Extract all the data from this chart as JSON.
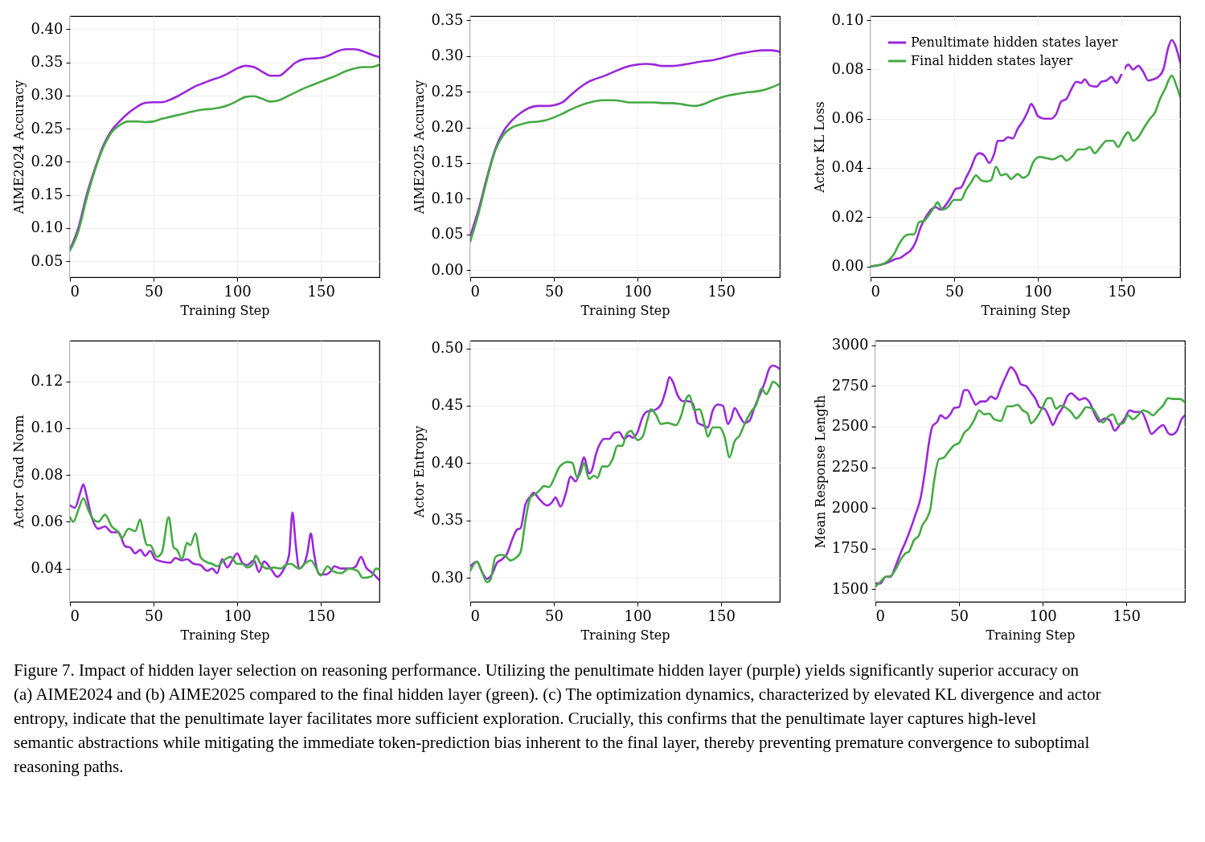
{
  "chart_data": [
    {
      "type": "line",
      "xlabel": "Training Step",
      "ylabel": "AIME2024 Accuracy",
      "xlim": [
        0,
        185
      ],
      "ylim": [
        0.026,
        0.42
      ],
      "xticks": [
        0,
        50,
        100,
        150
      ],
      "yticks": [
        0.05,
        {
          "value": 0.1,
          "label": "0.10"
        },
        0.15,
        {
          "value": 0.2,
          "label": "0.20"
        },
        0.25,
        {
          "value": 0.3,
          "label": "0.30"
        },
        0.35,
        {
          "value": 0.4,
          "label": "0.40"
        }
      ],
      "grid": true,
      "legend": false,
      "series": [
        {
          "color": "#9b27db",
          "x": [
            0,
            5,
            10,
            15,
            20,
            25,
            30,
            35,
            40,
            45,
            50,
            55,
            60,
            65,
            70,
            75,
            80,
            85,
            90,
            95,
            100,
            105,
            110,
            115,
            120,
            125,
            130,
            135,
            140,
            145,
            150,
            155,
            160,
            165,
            170,
            175,
            180,
            185
          ],
          "values": [
            0.068,
            0.1,
            0.15,
            0.19,
            0.225,
            0.248,
            0.262,
            0.274,
            0.283,
            0.289,
            0.29,
            0.29,
            0.294,
            0.3,
            0.307,
            0.314,
            0.319,
            0.324,
            0.328,
            0.334,
            0.341,
            0.345,
            0.343,
            0.336,
            0.33,
            0.33,
            0.339,
            0.35,
            0.355,
            0.356,
            0.357,
            0.361,
            0.367,
            0.37,
            0.37,
            0.367,
            0.362,
            0.358
          ]
        },
        {
          "color": "#44aa44",
          "x": [
            0,
            5,
            10,
            15,
            20,
            25,
            30,
            35,
            40,
            45,
            50,
            55,
            60,
            65,
            70,
            75,
            80,
            85,
            90,
            95,
            100,
            105,
            110,
            115,
            120,
            125,
            130,
            135,
            140,
            145,
            150,
            155,
            160,
            165,
            170,
            175,
            180,
            185
          ],
          "values": [
            0.066,
            0.095,
            0.145,
            0.188,
            0.222,
            0.245,
            0.256,
            0.261,
            0.261,
            0.26,
            0.261,
            0.265,
            0.268,
            0.271,
            0.274,
            0.277,
            0.279,
            0.28,
            0.282,
            0.286,
            0.292,
            0.298,
            0.299,
            0.295,
            0.291,
            0.293,
            0.299,
            0.305,
            0.311,
            0.316,
            0.321,
            0.326,
            0.331,
            0.337,
            0.341,
            0.343,
            0.343,
            0.347
          ]
        }
      ]
    },
    {
      "type": "line",
      "xlabel": "Training Step",
      "ylabel": "AIME2025 Accuracy",
      "xlim": [
        0,
        185
      ],
      "ylim": [
        -0.01,
        0.356
      ],
      "xticks": [
        0,
        50,
        100,
        150
      ],
      "yticks": [
        {
          "value": 0,
          "label": "0.00"
        },
        0.05,
        {
          "value": 0.1,
          "label": "0.10"
        },
        0.15,
        {
          "value": 0.2,
          "label": "0.20"
        },
        0.25,
        {
          "value": 0.3,
          "label": "0.30"
        },
        0.35
      ],
      "grid": true,
      "legend": false,
      "series": [
        {
          "color": "#9b27db",
          "x": [
            0,
            5,
            10,
            15,
            20,
            25,
            30,
            35,
            40,
            45,
            50,
            55,
            60,
            65,
            70,
            75,
            80,
            85,
            90,
            95,
            100,
            105,
            110,
            115,
            120,
            125,
            130,
            135,
            140,
            145,
            150,
            155,
            160,
            165,
            170,
            175,
            180,
            185
          ],
          "values": [
            0.048,
            0.085,
            0.13,
            0.17,
            0.195,
            0.21,
            0.22,
            0.227,
            0.23,
            0.23,
            0.231,
            0.235,
            0.245,
            0.255,
            0.263,
            0.268,
            0.272,
            0.277,
            0.282,
            0.286,
            0.288,
            0.289,
            0.288,
            0.286,
            0.286,
            0.287,
            0.289,
            0.291,
            0.293,
            0.294,
            0.297,
            0.3,
            0.303,
            0.305,
            0.307,
            0.308,
            0.308,
            0.306
          ]
        },
        {
          "color": "#44aa44",
          "x": [
            0,
            5,
            10,
            15,
            20,
            25,
            30,
            35,
            40,
            45,
            50,
            55,
            60,
            65,
            70,
            75,
            80,
            85,
            90,
            95,
            100,
            105,
            110,
            115,
            120,
            125,
            130,
            135,
            140,
            145,
            150,
            155,
            160,
            165,
            170,
            175,
            180,
            185
          ],
          "values": [
            0.04,
            0.08,
            0.127,
            0.168,
            0.19,
            0.2,
            0.204,
            0.207,
            0.208,
            0.21,
            0.214,
            0.219,
            0.225,
            0.23,
            0.234,
            0.237,
            0.238,
            0.238,
            0.237,
            0.235,
            0.235,
            0.235,
            0.235,
            0.234,
            0.234,
            0.233,
            0.231,
            0.23,
            0.233,
            0.238,
            0.242,
            0.245,
            0.247,
            0.249,
            0.25,
            0.252,
            0.256,
            0.261
          ]
        }
      ]
    },
    {
      "type": "line",
      "xlabel": "Training Step",
      "ylabel": "Actor KL Loss",
      "xlim": [
        0,
        185
      ],
      "ylim": [
        -0.0044,
        0.1017
      ],
      "xticks": [
        0,
        50,
        100,
        150
      ],
      "yticks": [
        {
          "value": 0,
          "label": "0.00"
        },
        0.02,
        0.04,
        0.06,
        0.08,
        {
          "value": 0.1,
          "label": "0.10"
        }
      ],
      "grid": true,
      "legend": "top left",
      "series": [
        {
          "name": "Penultimate hidden states layer",
          "color": "#9b27db",
          "x": [
            0,
            5,
            10,
            15,
            18,
            21,
            24,
            27,
            30,
            33,
            36,
            39,
            42,
            45,
            48,
            51,
            54,
            57,
            60,
            63,
            65,
            68,
            71,
            74,
            76,
            79,
            82,
            85,
            88,
            91,
            94,
            96,
            98,
            100,
            104,
            108,
            111,
            114,
            117,
            120,
            123,
            126,
            128,
            131,
            135,
            138,
            141,
            144,
            147,
            150,
            154,
            157,
            160,
            163,
            166,
            169,
            172,
            175,
            178,
            180,
            182,
            185
          ],
          "values": [
            0.0,
            0.0005,
            0.0015,
            0.003,
            0.0035,
            0.005,
            0.0065,
            0.01,
            0.016,
            0.02,
            0.023,
            0.024,
            0.023,
            0.025,
            0.028,
            0.0315,
            0.032,
            0.036,
            0.04,
            0.045,
            0.046,
            0.045,
            0.042,
            0.046,
            0.051,
            0.051,
            0.0525,
            0.052,
            0.056,
            0.059,
            0.063,
            0.066,
            0.064,
            0.061,
            0.06,
            0.06,
            0.062,
            0.067,
            0.068,
            0.072,
            0.075,
            0.0745,
            0.076,
            0.0735,
            0.073,
            0.075,
            0.0755,
            0.077,
            0.0745,
            0.078,
            0.082,
            0.08,
            0.0815,
            0.079,
            0.0755,
            0.076,
            0.077,
            0.08,
            0.089,
            0.092,
            0.09,
            0.083
          ]
        },
        {
          "name": "Final hidden states layer",
          "color": "#44aa44",
          "x": [
            0,
            5,
            10,
            14,
            17,
            20,
            23,
            26,
            29,
            32,
            35,
            38,
            40,
            43,
            46,
            50,
            54,
            57,
            60,
            63,
            66,
            69,
            72,
            75,
            78,
            81,
            84,
            88,
            91,
            94,
            97,
            101,
            105,
            109,
            114,
            117,
            121,
            124,
            128,
            131,
            134,
            138,
            141,
            145,
            148,
            151,
            154,
            157,
            160,
            164,
            167,
            170,
            173,
            176,
            180,
            183,
            185
          ],
          "values": [
            0.0,
            0.0005,
            0.002,
            0.005,
            0.009,
            0.012,
            0.013,
            0.013,
            0.018,
            0.0185,
            0.021,
            0.024,
            0.026,
            0.023,
            0.024,
            0.027,
            0.027,
            0.031,
            0.034,
            0.037,
            0.035,
            0.0345,
            0.035,
            0.0405,
            0.037,
            0.0375,
            0.0355,
            0.0375,
            0.036,
            0.037,
            0.042,
            0.0445,
            0.044,
            0.0435,
            0.045,
            0.043,
            0.045,
            0.0475,
            0.0475,
            0.0485,
            0.046,
            0.049,
            0.051,
            0.051,
            0.0485,
            0.052,
            0.0545,
            0.051,
            0.0525,
            0.057,
            0.06,
            0.0625,
            0.068,
            0.072,
            0.0775,
            0.073,
            0.069
          ]
        }
      ]
    },
    {
      "type": "line",
      "xlabel": "Training Step",
      "ylabel": "Actor Grad Norm",
      "xlim": [
        0,
        185
      ],
      "ylim": [
        0.0258,
        0.1374
      ],
      "xticks": [
        0,
        50,
        100,
        150
      ],
      "yticks": [
        0.04,
        0.06,
        0.08,
        {
          "value": 0.1,
          "label": "0.10"
        },
        0.12
      ],
      "grid": true,
      "legend": false,
      "series": [
        {
          "color": "#9b27db",
          "x": [
            0,
            3,
            6,
            8,
            10,
            13,
            17,
            21,
            25,
            29,
            33,
            36,
            39,
            42,
            45,
            48,
            51,
            55,
            60,
            63,
            67,
            70,
            74,
            78,
            82,
            85,
            88,
            91,
            94,
            97,
            100,
            103,
            106,
            110,
            113,
            116,
            120,
            124,
            128,
            131,
            133,
            135,
            137,
            140,
            142,
            144,
            146,
            149,
            153,
            156,
            158,
            162,
            168,
            171,
            174,
            177,
            181,
            185
          ],
          "values": [
            0.067,
            0.066,
            0.072,
            0.076,
            0.071,
            0.062,
            0.057,
            0.058,
            0.0555,
            0.0555,
            0.0495,
            0.049,
            0.0465,
            0.048,
            0.0455,
            0.0475,
            0.044,
            0.043,
            0.0425,
            0.0445,
            0.0435,
            0.044,
            0.042,
            0.0415,
            0.039,
            0.04,
            0.038,
            0.044,
            0.0405,
            0.0435,
            0.0465,
            0.0425,
            0.0415,
            0.0435,
            0.0385,
            0.043,
            0.04,
            0.0365,
            0.04,
            0.046,
            0.064,
            0.05,
            0.04,
            0.042,
            0.047,
            0.055,
            0.046,
            0.0375,
            0.0375,
            0.039,
            0.041,
            0.04,
            0.04,
            0.041,
            0.045,
            0.0405,
            0.038,
            0.035
          ]
        },
        {
          "color": "#44aa44",
          "x": [
            0,
            2,
            5,
            8,
            11,
            14,
            17,
            21,
            25,
            29,
            31,
            35,
            39,
            42,
            44,
            46,
            48,
            52,
            55,
            59,
            62,
            64,
            67,
            70,
            72,
            75,
            78,
            81,
            85,
            88,
            92,
            96,
            100,
            103,
            106,
            109,
            111,
            114,
            118,
            122,
            126,
            129,
            132,
            137,
            141,
            144,
            147,
            150,
            154,
            157,
            162,
            167,
            172,
            175,
            180,
            183,
            185
          ],
          "values": [
            0.062,
            0.06,
            0.065,
            0.07,
            0.065,
            0.061,
            0.06,
            0.063,
            0.058,
            0.0555,
            0.053,
            0.057,
            0.056,
            0.061,
            0.055,
            0.05,
            0.05,
            0.045,
            0.047,
            0.062,
            0.049,
            0.048,
            0.044,
            0.051,
            0.05,
            0.055,
            0.045,
            0.043,
            0.042,
            0.041,
            0.0435,
            0.045,
            0.042,
            0.042,
            0.0405,
            0.0415,
            0.0455,
            0.042,
            0.04,
            0.0405,
            0.04,
            0.0415,
            0.042,
            0.04,
            0.0425,
            0.0435,
            0.0405,
            0.037,
            0.041,
            0.039,
            0.038,
            0.04,
            0.039,
            0.036,
            0.0365,
            0.04,
            0.0395
          ]
        }
      ]
    },
    {
      "type": "line",
      "xlabel": "Training Step",
      "ylabel": "Actor Entropy",
      "xlim": [
        0,
        185
      ],
      "ylim": [
        0.279,
        0.5067
      ],
      "xticks": [
        0,
        50,
        100,
        150
      ],
      "yticks": [
        {
          "value": 0.3,
          "label": "0.30"
        },
        0.35,
        {
          "value": 0.4,
          "label": "0.40"
        },
        0.45,
        {
          "value": 0.5,
          "label": "0.50"
        }
      ],
      "grid": true,
      "legend": false,
      "series": [
        {
          "color": "#9b27db",
          "x": [
            0,
            4,
            7,
            10,
            13,
            16,
            19,
            22,
            25,
            28,
            30,
            33,
            36,
            38,
            41,
            46,
            49,
            51,
            54,
            57,
            60,
            63,
            66,
            68,
            71,
            73,
            75,
            78,
            80,
            83,
            86,
            89,
            92,
            95,
            97,
            100,
            103,
            106,
            110,
            114,
            117,
            119,
            121,
            124,
            127,
            130,
            133,
            136,
            139,
            142,
            145,
            148,
            151,
            154,
            156,
            158,
            161,
            164,
            167,
            170,
            173,
            176,
            179,
            181,
            185
          ],
          "values": [
            0.31,
            0.314,
            0.305,
            0.299,
            0.303,
            0.313,
            0.316,
            0.321,
            0.333,
            0.342,
            0.343,
            0.364,
            0.371,
            0.374,
            0.369,
            0.363,
            0.366,
            0.37,
            0.362,
            0.373,
            0.388,
            0.384,
            0.396,
            0.405,
            0.391,
            0.395,
            0.407,
            0.418,
            0.421,
            0.421,
            0.426,
            0.427,
            0.421,
            0.424,
            0.422,
            0.427,
            0.44,
            0.445,
            0.446,
            0.451,
            0.464,
            0.475,
            0.471,
            0.459,
            0.454,
            0.454,
            0.452,
            0.435,
            0.433,
            0.431,
            0.446,
            0.451,
            0.45,
            0.434,
            0.439,
            0.448,
            0.441,
            0.435,
            0.437,
            0.449,
            0.459,
            0.47,
            0.483,
            0.485,
            0.482
          ]
        },
        {
          "color": "#44aa44",
          "x": [
            0,
            4,
            7,
            10,
            12,
            15,
            18,
            21,
            24,
            27,
            30,
            33,
            36,
            39,
            42,
            44,
            47,
            50,
            53,
            56,
            58,
            61,
            64,
            66,
            68,
            71,
            74,
            76,
            79,
            82,
            85,
            88,
            91,
            93,
            96,
            100,
            103,
            106,
            108,
            111,
            114,
            118,
            123,
            126,
            129,
            131,
            134,
            137,
            140,
            142,
            145,
            149,
            152,
            155,
            158,
            161,
            164,
            168,
            171,
            174,
            177,
            179,
            181,
            185
          ],
          "values": [
            0.306,
            0.314,
            0.305,
            0.296,
            0.298,
            0.318,
            0.32,
            0.319,
            0.315,
            0.317,
            0.322,
            0.35,
            0.37,
            0.373,
            0.377,
            0.38,
            0.379,
            0.386,
            0.396,
            0.4,
            0.401,
            0.4,
            0.387,
            0.392,
            0.4,
            0.386,
            0.389,
            0.387,
            0.397,
            0.397,
            0.403,
            0.415,
            0.415,
            0.424,
            0.428,
            0.42,
            0.423,
            0.438,
            0.447,
            0.442,
            0.434,
            0.435,
            0.433,
            0.441,
            0.456,
            0.459,
            0.446,
            0.447,
            0.434,
            0.423,
            0.431,
            0.431,
            0.423,
            0.405,
            0.419,
            0.424,
            0.434,
            0.445,
            0.451,
            0.465,
            0.46,
            0.465,
            0.471,
            0.466
          ]
        }
      ]
    },
    {
      "type": "line",
      "xlabel": "Training Step",
      "ylabel": "Mean Response Length",
      "xlim": [
        0,
        185
      ],
      "ylim": [
        1422,
        3029
      ],
      "xticks": [
        0,
        50,
        100,
        150
      ],
      "yticks": [
        1500,
        1750,
        2000,
        2250,
        2500,
        2750,
        3000
      ],
      "grid": true,
      "legend": false,
      "annotations": [
        "Figure 7. Impact of hidden layer selection on reasoning performance. Utilizing the penultimate hidden layer (purple) yields significantly superior accuracy on (a) AIME2024 and (b) AIME2025 compared to the final hidden layer (green). (c) The optimization dynamics, characterized by elevated KL divergence and actor entropy, indicate that the penultimate layer facilitates more sufficient exploration. Crucially, this confirms that the penultimate layer captures high-level semantic abstractions while mitigating the immediate token-prediction bias inherent to the final layer, thereby preventing premature convergence to suboptimal reasoning paths."
      ],
      "series": [
        {
          "color": "#9b27db",
          "x": [
            0,
            3,
            6,
            9,
            12,
            15,
            18,
            21,
            24,
            27,
            30,
            32,
            34,
            37,
            39,
            42,
            45,
            47,
            50,
            53,
            55,
            58,
            60,
            63,
            66,
            69,
            72,
            75,
            78,
            81,
            84,
            87,
            90,
            93,
            96,
            98,
            101,
            104,
            106,
            109,
            112,
            115,
            117,
            120,
            122,
            125,
            128,
            131,
            134,
            137,
            140,
            143,
            146,
            149,
            152,
            155,
            159,
            162,
            165,
            168,
            172,
            175,
            177,
            180,
            183,
            185
          ],
          "values": [
            1535,
            1535,
            1575,
            1575,
            1640,
            1720,
            1790,
            1870,
            1960,
            2060,
            2250,
            2400,
            2500,
            2530,
            2570,
            2550,
            2580,
            2615,
            2620,
            2725,
            2725,
            2670,
            2635,
            2655,
            2655,
            2685,
            2670,
            2740,
            2810,
            2865,
            2830,
            2760,
            2750,
            2710,
            2665,
            2620,
            2610,
            2555,
            2510,
            2570,
            2620,
            2690,
            2705,
            2680,
            2665,
            2675,
            2650,
            2580,
            2530,
            2550,
            2540,
            2475,
            2510,
            2550,
            2600,
            2590,
            2590,
            2530,
            2455,
            2480,
            2510,
            2460,
            2450,
            2470,
            2545,
            2570
          ]
        },
        {
          "color": "#44aa44",
          "x": [
            0,
            3,
            6,
            9,
            12,
            15,
            18,
            20,
            23,
            26,
            28,
            31,
            33,
            35,
            38,
            41,
            44,
            47,
            50,
            53,
            56,
            59,
            62,
            65,
            68,
            71,
            75,
            79,
            82,
            85,
            88,
            91,
            93,
            96,
            100,
            103,
            105,
            108,
            111,
            114,
            117,
            120,
            123,
            126,
            130,
            133,
            136,
            139,
            142,
            145,
            148,
            151,
            154,
            157,
            160,
            163,
            166,
            169,
            172,
            175,
            178,
            182,
            185
          ],
          "values": [
            1515,
            1545,
            1575,
            1580,
            1620,
            1680,
            1720,
            1730,
            1800,
            1830,
            1890,
            1940,
            2000,
            2160,
            2300,
            2310,
            2350,
            2385,
            2400,
            2460,
            2490,
            2540,
            2600,
            2575,
            2580,
            2545,
            2535,
            2625,
            2625,
            2635,
            2600,
            2580,
            2520,
            2550,
            2620,
            2675,
            2675,
            2610,
            2630,
            2615,
            2590,
            2550,
            2580,
            2620,
            2610,
            2560,
            2525,
            2560,
            2575,
            2515,
            2520,
            2570,
            2545,
            2570,
            2600,
            2590,
            2570,
            2600,
            2630,
            2675,
            2670,
            2670,
            2650
          ]
        }
      ]
    }
  ]
}
